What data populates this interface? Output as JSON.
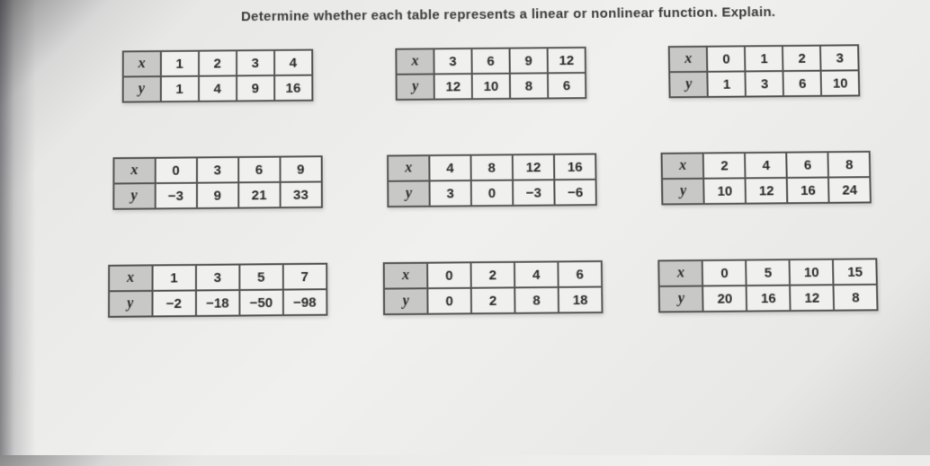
{
  "title": "Determine whether each table represents a linear or nonlinear function. Explain.",
  "rows": [
    {
      "tables": [
        {
          "x": [
            "1",
            "2",
            "3",
            "4"
          ],
          "y": [
            "1",
            "4",
            "9",
            "16"
          ]
        },
        {
          "x": [
            "3",
            "6",
            "9",
            "12"
          ],
          "y": [
            "12",
            "10",
            "8",
            "6"
          ]
        },
        {
          "x": [
            "0",
            "1",
            "2",
            "3"
          ],
          "y": [
            "1",
            "3",
            "6",
            "10"
          ]
        }
      ]
    },
    {
      "tables": [
        {
          "x": [
            "0",
            "3",
            "6",
            "9"
          ],
          "y": [
            "−3",
            "9",
            "21",
            "33"
          ]
        },
        {
          "x": [
            "4",
            "8",
            "12",
            "16"
          ],
          "y": [
            "3",
            "0",
            "−3",
            "−6"
          ]
        },
        {
          "x": [
            "2",
            "4",
            "6",
            "8"
          ],
          "y": [
            "10",
            "12",
            "16",
            "24"
          ]
        }
      ]
    },
    {
      "tables": [
        {
          "x": [
            "1",
            "3",
            "5",
            "7"
          ],
          "y": [
            "−2",
            "−18",
            "−50",
            "−98"
          ]
        },
        {
          "x": [
            "0",
            "2",
            "4",
            "6"
          ],
          "y": [
            "0",
            "2",
            "8",
            "18"
          ]
        },
        {
          "x": [
            "0",
            "5",
            "10",
            "15"
          ],
          "y": [
            "20",
            "16",
            "12",
            "8"
          ]
        }
      ]
    }
  ],
  "labels": {
    "x": "x",
    "y": "y"
  },
  "style": {
    "header_bg": "#c8c8c6",
    "cell_bg": "#f0f0ee",
    "border_color": "#555555",
    "text_color": "#2a2a28"
  }
}
